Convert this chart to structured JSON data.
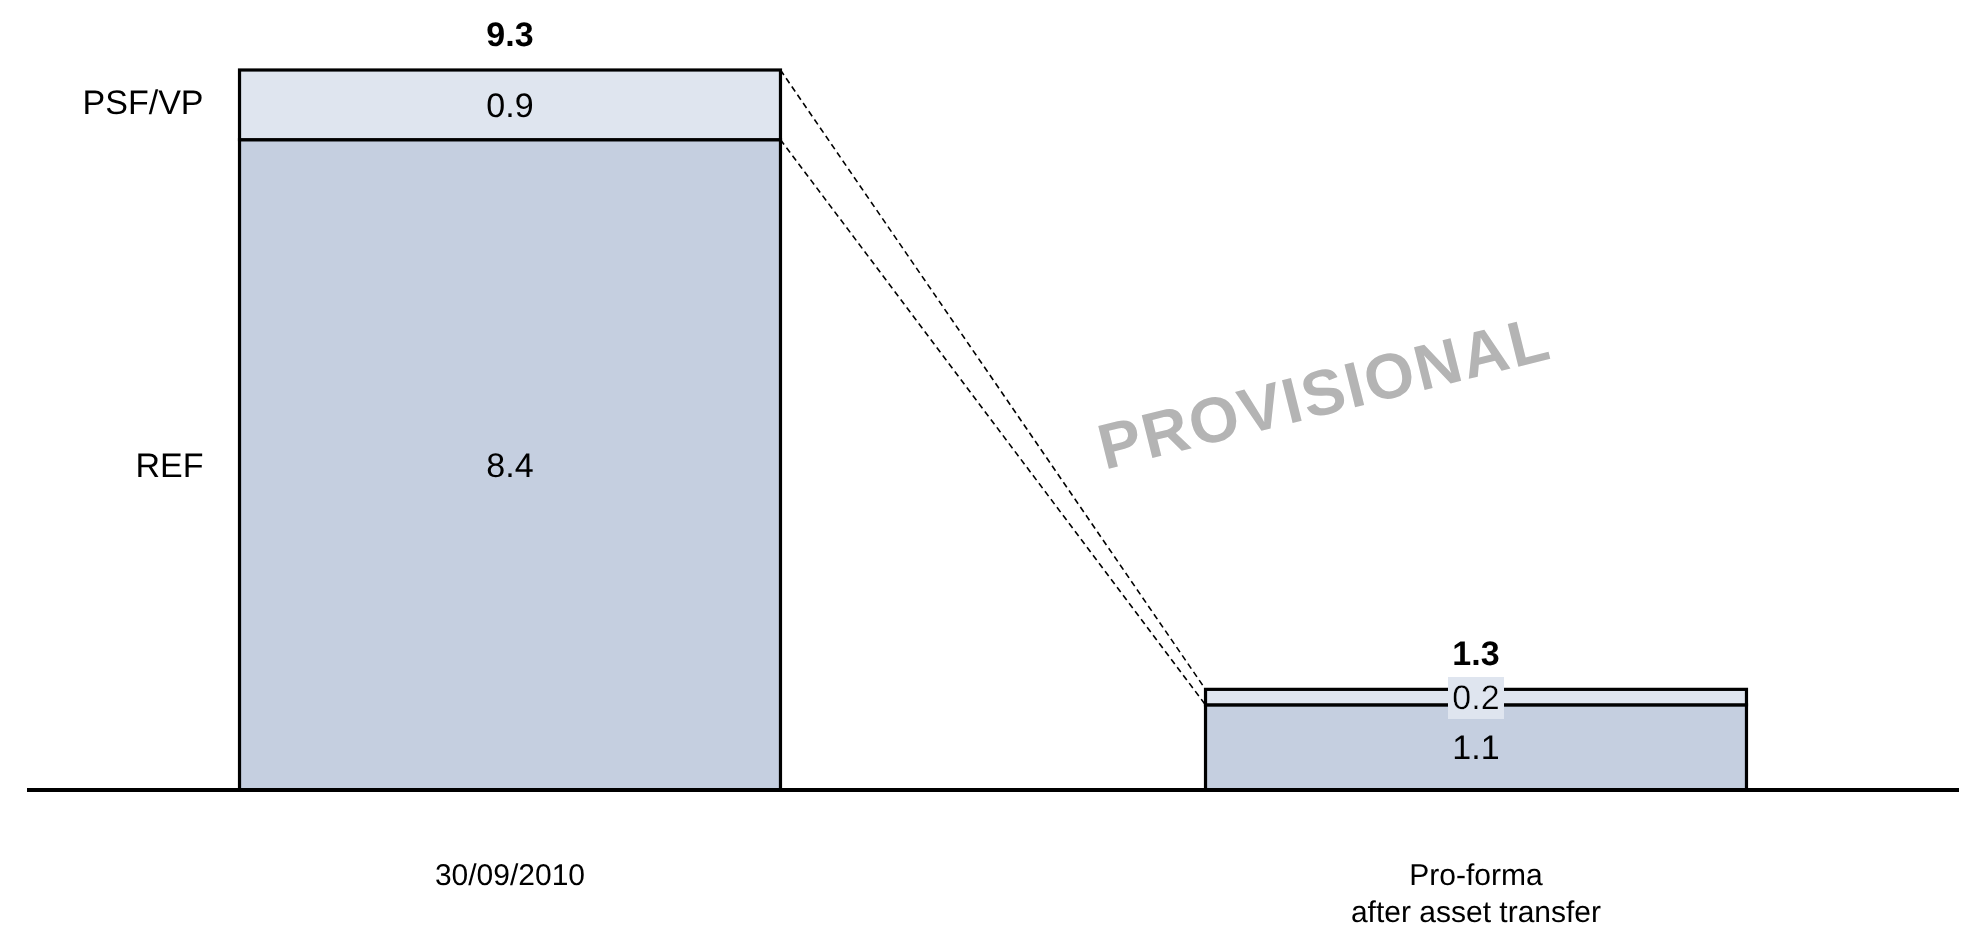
{
  "chart_data": {
    "type": "bar",
    "stacked": true,
    "categories": [
      "30/09/2010",
      "Pro-forma\nafter asset transfer"
    ],
    "series": [
      {
        "name": "REF",
        "color": "#c5cfe0",
        "values": [
          8.4,
          1.1
        ]
      },
      {
        "name": "PSF/VP",
        "color": "#dfe5ef",
        "values": [
          0.9,
          0.2
        ]
      }
    ],
    "data_labels": true,
    "totals": [
      "9.3",
      "1.3"
    ],
    "tick_labels": "x",
    "annotations": [
      "PROVISIONAL"
    ]
  }
}
